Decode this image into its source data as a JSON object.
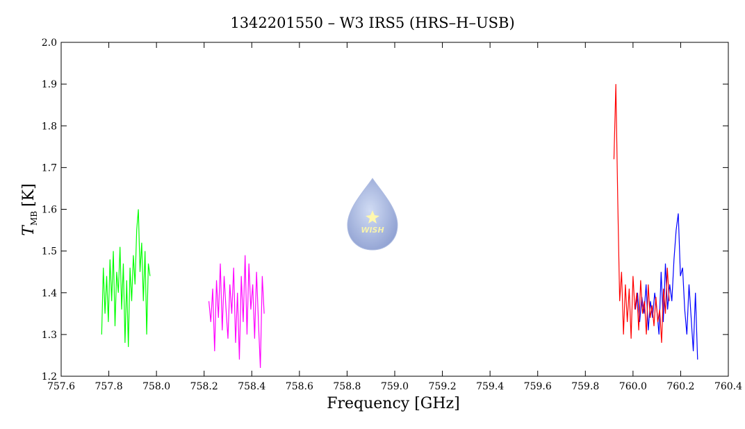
{
  "chart_data": {
    "type": "line",
    "title": "1342201550 – W3 IRS5 (HRS–H–USB)",
    "xlabel": "Frequency [GHz]",
    "ylabel": {
      "symbol": "T",
      "subscript": "MB",
      "unit": "[K]"
    },
    "logo_text": "WISH",
    "xlim": [
      757.6,
      760.4
    ],
    "ylim": [
      1.2,
      2.0
    ],
    "xticks": [
      757.6,
      {
        "value": 757.8,
        "label": "757.8"
      },
      {
        "value": 758.0,
        "label": "758.0"
      },
      758.2,
      758.4,
      758.6,
      758.8,
      {
        "value": 759.0,
        "label": "759.0"
      },
      759.2,
      759.4,
      759.6,
      759.8,
      {
        "value": 760.0,
        "label": "760.0"
      },
      760.2,
      760.4
    ],
    "yticks": [
      1.2,
      1.3,
      1.4,
      1.5,
      1.6,
      1.7,
      1.8,
      1.9,
      {
        "value": 2.0,
        "label": "2.0"
      }
    ],
    "series": [
      {
        "color": "#00ff00",
        "x": [
          757.77,
          757.777,
          757.784,
          757.791,
          757.798,
          757.805,
          757.812,
          757.819,
          757.826,
          757.833,
          757.84,
          757.847,
          757.854,
          757.861,
          757.868,
          757.875,
          757.882,
          757.889,
          757.896,
          757.903,
          757.91,
          757.917,
          757.924,
          757.931,
          757.938,
          757.945,
          757.952,
          757.959,
          757.966,
          757.973
        ],
        "values": [
          1.3,
          1.46,
          1.35,
          1.44,
          1.33,
          1.48,
          1.38,
          1.5,
          1.32,
          1.45,
          1.4,
          1.51,
          1.36,
          1.47,
          1.28,
          1.43,
          1.27,
          1.46,
          1.38,
          1.49,
          1.42,
          1.55,
          1.6,
          1.45,
          1.52,
          1.38,
          1.5,
          1.3,
          1.47,
          1.44
        ]
      },
      {
        "color": "#ff00ff",
        "x": [
          758.22,
          758.228,
          758.236,
          758.244,
          758.252,
          758.26,
          758.268,
          758.276,
          758.284,
          758.292,
          758.3,
          758.308,
          758.316,
          758.324,
          758.332,
          758.34,
          758.348,
          758.356,
          758.364,
          758.372,
          758.38,
          758.388,
          758.396,
          758.404,
          758.412,
          758.42,
          758.428,
          758.436,
          758.444,
          758.452
        ],
        "values": [
          1.38,
          1.33,
          1.41,
          1.26,
          1.43,
          1.34,
          1.47,
          1.31,
          1.44,
          1.36,
          1.29,
          1.42,
          1.35,
          1.46,
          1.28,
          1.4,
          1.24,
          1.44,
          1.33,
          1.49,
          1.3,
          1.47,
          1.36,
          1.42,
          1.29,
          1.45,
          1.33,
          1.22,
          1.44,
          1.35
        ]
      },
      {
        "color": "#0000ff",
        "x": [
          760.01,
          760.019,
          760.028,
          760.037,
          760.046,
          760.055,
          760.064,
          760.073,
          760.082,
          760.091,
          760.1,
          760.109,
          760.118,
          760.127,
          760.136,
          760.145,
          760.154,
          760.163,
          760.172,
          760.181,
          760.19,
          760.199,
          760.208,
          760.217,
          760.226,
          760.235,
          760.244,
          760.253,
          760.262,
          760.271
        ],
        "values": [
          1.36,
          1.4,
          1.33,
          1.39,
          1.35,
          1.42,
          1.31,
          1.38,
          1.34,
          1.4,
          1.36,
          1.3,
          1.45,
          1.33,
          1.47,
          1.36,
          1.42,
          1.38,
          1.48,
          1.55,
          1.59,
          1.44,
          1.46,
          1.36,
          1.3,
          1.42,
          1.34,
          1.26,
          1.4,
          1.24
        ]
      },
      {
        "color": "#ff0000",
        "x": [
          759.92,
          759.928,
          759.936,
          759.944,
          759.952,
          759.96,
          759.968,
          759.976,
          759.984,
          759.992,
          760.0,
          760.008,
          760.016,
          760.024,
          760.032,
          760.04,
          760.048,
          760.056,
          760.064,
          760.072,
          760.08,
          760.088,
          760.096,
          760.104,
          760.112,
          760.12,
          760.128,
          760.136,
          760.144,
          760.152
        ],
        "values": [
          1.72,
          1.9,
          1.62,
          1.38,
          1.45,
          1.3,
          1.42,
          1.33,
          1.41,
          1.29,
          1.44,
          1.36,
          1.4,
          1.31,
          1.43,
          1.35,
          1.38,
          1.3,
          1.42,
          1.34,
          1.37,
          1.32,
          1.39,
          1.33,
          1.36,
          1.28,
          1.41,
          1.35,
          1.46,
          1.38
        ]
      }
    ]
  }
}
